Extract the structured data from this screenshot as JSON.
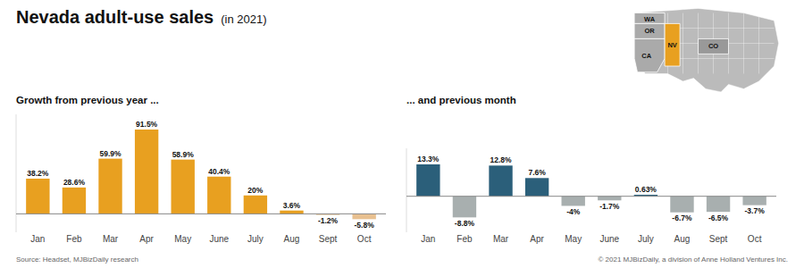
{
  "title": "Nevada adult-use sales",
  "subtitle": "(in 2021)",
  "annotations": [
    "Source: Headset, MJBizDaily research",
    "© 2021 MJBizDaily, a division of Anne Holland Ventures Inc.",
    "WA",
    "OR",
    "CA",
    "NV",
    "CO"
  ],
  "chart_data": [
    {
      "type": "bar",
      "title": "Growth from previous year ...",
      "categories": [
        "Jan",
        "Feb",
        "Mar",
        "Apr",
        "May",
        "June",
        "July",
        "Aug",
        "Sept",
        "Oct"
      ],
      "values": [
        38.2,
        28.6,
        59.9,
        91.5,
        58.9,
        40.4,
        20.0,
        3.6,
        -1.2,
        -5.8
      ],
      "value_labels": [
        "38.2%",
        "28.6%",
        "59.9%",
        "91.5%",
        "58.9%",
        "40.4%",
        "20%",
        "3.6%",
        "-1.2%",
        "-5.8%"
      ],
      "colors": [
        "#E8A020",
        "#E8A020",
        "#E8A020",
        "#E8A020",
        "#E8A020",
        "#E8A020",
        "#E8A020",
        "#E8A020",
        "#E8C090",
        "#E8C090"
      ],
      "ylim": [
        -20,
        108
      ],
      "data_labels": true,
      "tick_labels": "x",
      "grid": false
    },
    {
      "type": "bar",
      "title": "... and previous month",
      "categories": [
        "Jan",
        "Feb",
        "Mar",
        "Apr",
        "May",
        "June",
        "July",
        "Aug",
        "Sept",
        "Oct"
      ],
      "values": [
        13.3,
        -8.8,
        12.8,
        7.6,
        -4.0,
        -1.7,
        0.63,
        -6.7,
        -6.5,
        -3.7
      ],
      "value_labels": [
        "13.3%",
        "-8.8%",
        "12.8%",
        "7.6%",
        "-4%",
        "-1.7%",
        "0.63%",
        "-6.7%",
        "-6.5%",
        "-3.7%"
      ],
      "colors": [
        "#2B5F7A",
        "#A8AFAF",
        "#2B5F7A",
        "#2B5F7A",
        "#A8AFAF",
        "#A8AFAF",
        "#2B5F7A",
        "#A8AFAF",
        "#A8AFAF",
        "#A8AFAF"
      ],
      "ylim": [
        -15,
        20
      ],
      "data_labels": true,
      "tick_labels": "x",
      "grid": false
    }
  ]
}
